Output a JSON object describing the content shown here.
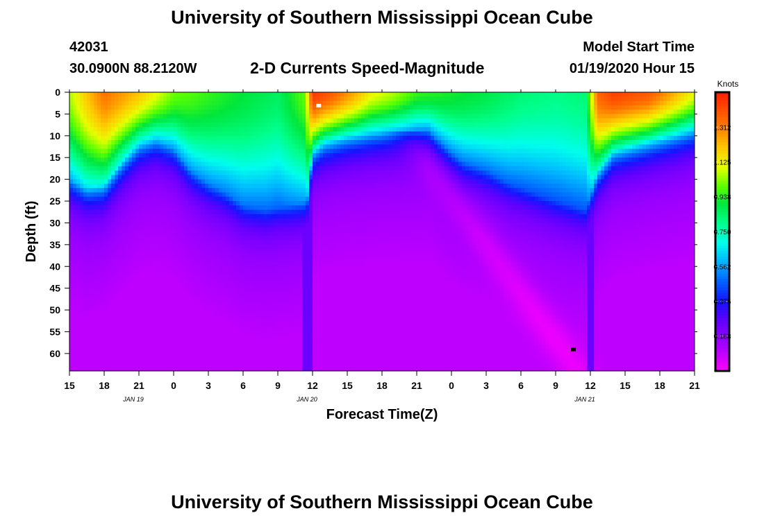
{
  "page": {
    "title": "University of Southern Mississippi Ocean Cube",
    "footer_title": "University of Southern Mississippi Ocean Cube",
    "station_id": "42031",
    "station_coords": "30.0900N 88.2120W",
    "model_start_label": "Model Start Time",
    "model_start_value": "01/19/2020 Hour 15",
    "subtitle": "2-D Currents Speed-Magnitude"
  },
  "chart_data": {
    "type": "heatmap",
    "title": "2-D Currents Speed-Magnitude",
    "xlabel": "Forecast Time(Z)",
    "ylabel": "Depth (ft)",
    "x_tick_labels": [
      "15",
      "18",
      "21",
      "0",
      "3",
      "6",
      "9",
      "12",
      "15",
      "18",
      "21",
      "0",
      "3",
      "6",
      "9",
      "12",
      "15",
      "18",
      "21"
    ],
    "date_labels": [
      {
        "text": "JAN 19",
        "tick_index": 2
      },
      {
        "text": "JAN 20",
        "tick_index": 7
      },
      {
        "text": "JAN 21",
        "tick_index": 15
      }
    ],
    "y_ticks": [
      0,
      5,
      10,
      15,
      20,
      25,
      30,
      35,
      40,
      45,
      50,
      55,
      60
    ],
    "ylim": [
      0,
      64
    ],
    "xlim_hours": [
      0,
      54
    ],
    "colorbar": {
      "title": "Knots",
      "ticks": [
        "1.312",
        "1.125",
        "0.938",
        "0.750",
        "0.562",
        "0.375",
        "0.188"
      ],
      "range": [
        0,
        1.5
      ]
    },
    "surface_speed_knots": [
      [
        0,
        1.05
      ],
      [
        1.5,
        1.2
      ],
      [
        3,
        1.33
      ],
      [
        4.5,
        1.27
      ],
      [
        6,
        1.2
      ],
      [
        7.5,
        1.1
      ],
      [
        9,
        1.0
      ],
      [
        10.5,
        0.98
      ],
      [
        12,
        0.95
      ],
      [
        15,
        0.9
      ],
      [
        18,
        0.85
      ],
      [
        20.4,
        1.0
      ],
      [
        21,
        1.45
      ],
      [
        22.5,
        1.38
      ],
      [
        24.5,
        1.25
      ],
      [
        26,
        1.12
      ],
      [
        28,
        1.05
      ],
      [
        30,
        0.95
      ],
      [
        33,
        0.92
      ],
      [
        36,
        0.88
      ],
      [
        39,
        0.82
      ],
      [
        42,
        0.8
      ],
      [
        44.6,
        0.82
      ],
      [
        45.6,
        1.35
      ],
      [
        47,
        1.43
      ],
      [
        50,
        1.38
      ],
      [
        52,
        1.25
      ],
      [
        54,
        1.1
      ]
    ],
    "mixed_layer_bottom_ft": [
      [
        0,
        20
      ],
      [
        1.5,
        22
      ],
      [
        3,
        21
      ],
      [
        4.5,
        16
      ],
      [
        6,
        12
      ],
      [
        7.5,
        11
      ],
      [
        9,
        13
      ],
      [
        10.5,
        18
      ],
      [
        12,
        21
      ],
      [
        13.5,
        23
      ],
      [
        15,
        26
      ],
      [
        17,
        27
      ],
      [
        19,
        26
      ],
      [
        20.5,
        25
      ],
      [
        21,
        13
      ],
      [
        22,
        11
      ],
      [
        24,
        10
      ],
      [
        27,
        9.5
      ],
      [
        30,
        9
      ],
      [
        31,
        9
      ],
      [
        33,
        14
      ],
      [
        34,
        16
      ],
      [
        36,
        18
      ],
      [
        38,
        21
      ],
      [
        40,
        23
      ],
      [
        42,
        25
      ],
      [
        44.6,
        27
      ],
      [
        45.6,
        18
      ],
      [
        47,
        13
      ],
      [
        50,
        11
      ],
      [
        52,
        10
      ],
      [
        54,
        9
      ]
    ],
    "markers": [
      {
        "label": "white marker",
        "hour": 21.5,
        "depth": 3
      },
      {
        "label": "black marker",
        "hour": 43.5,
        "depth": 59
      }
    ]
  }
}
